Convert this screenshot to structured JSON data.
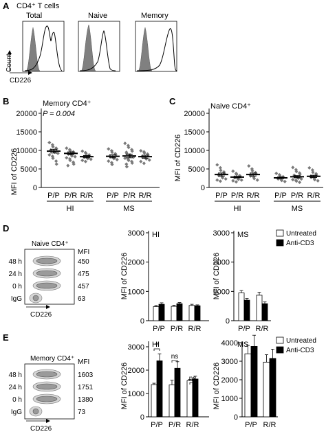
{
  "panelA": {
    "letter": "A",
    "title": "CD4⁺ T cells",
    "subtitles": [
      "Total",
      "Naive",
      "Memory"
    ],
    "ylabel": "Count",
    "xlabel": "CD226"
  },
  "panelB": {
    "letter": "B",
    "title": "Memory CD4⁺",
    "pvalue": "P = 0.004",
    "ylabel": "MFI of CD226",
    "yticks": [
      "0",
      "5000",
      "10000",
      "15000",
      "20000"
    ],
    "groups": [
      {
        "name": "HI",
        "members": [
          "P/P",
          "P/R",
          "R/R"
        ]
      },
      {
        "name": "MS",
        "members": [
          "P/P",
          "P/R",
          "R/R"
        ]
      }
    ]
  },
  "panelC": {
    "letter": "C",
    "title": "Naive CD4⁺",
    "ylabel": "MFI of CD226",
    "yticks": [
      "0",
      "5000",
      "10000",
      "15000",
      "20000"
    ],
    "groups": [
      {
        "name": "HI",
        "members": [
          "P/P",
          "P/R",
          "R/R"
        ]
      },
      {
        "name": "MS",
        "members": [
          "P/P",
          "P/R",
          "R/R"
        ]
      }
    ]
  },
  "panelD": {
    "letter": "D",
    "flow_title": "Naive CD4⁺",
    "mfi_header": "MFI",
    "rows": [
      {
        "label": "48 h",
        "mfi": "450"
      },
      {
        "label": "24 h",
        "mfi": "475"
      },
      {
        "label": "0 h",
        "mfi": "457"
      },
      {
        "label": "IgG",
        "mfi": "63"
      }
    ],
    "xlabel": "CD226",
    "chart_titles": [
      "HI",
      "MS"
    ],
    "ylabel": "MFI of CD226",
    "yticks": [
      "0",
      "1000",
      "2000",
      "3000"
    ]
  },
  "panelE": {
    "letter": "E",
    "flow_title": "Memory CD4⁺",
    "mfi_header": "MFI",
    "rows": [
      {
        "label": "48 h",
        "mfi": "1603"
      },
      {
        "label": "24 h",
        "mfi": "1751"
      },
      {
        "label": "0 h",
        "mfi": "1380"
      },
      {
        "label": "IgG",
        "mfi": "73"
      }
    ],
    "xlabel": "CD226",
    "chart_titles": [
      "HI",
      "MS"
    ],
    "ylabel": "MFI of CD226",
    "yticks_HI": [
      "0",
      "1000",
      "2000",
      "3000"
    ],
    "yticks_MS": [
      "0",
      "1000",
      "2000",
      "3000",
      "4000"
    ],
    "sig_labels": [
      "*",
      "ns",
      "ns"
    ]
  },
  "legend": {
    "untreated": "Untreated",
    "anti_cd3": "Anti-CD3"
  },
  "colors": {
    "untreated": "#ffffff",
    "anti_cd3": "#000000",
    "iso": "#808080",
    "dot": "#7a7a7a"
  },
  "chart_data": [
    {
      "type": "scatter",
      "id": "B",
      "categories": [
        "HI P/P",
        "HI P/R",
        "HI R/R",
        "MS P/P",
        "MS P/R",
        "MS R/R"
      ],
      "ylim": [
        0,
        20000
      ],
      "means": [
        9800,
        9200,
        8300,
        8400,
        8500,
        8300
      ],
      "sem": [
        500,
        400,
        300,
        400,
        500,
        400
      ],
      "points": [
        [
          12100,
          11500,
          11000,
          10600,
          10400,
          10100,
          9900,
          9700,
          9500,
          9200,
          8800,
          8400,
          7900,
          7100,
          6300
        ],
        [
          10600,
          10200,
          9900,
          9600,
          9400,
          9200,
          9000,
          8800,
          8500,
          8300,
          8000,
          7700,
          7300,
          6800,
          6300,
          5900
        ],
        [
          9800,
          9400,
          9100,
          8800,
          8500,
          8300,
          8200,
          8000,
          7800,
          7600,
          7300,
          7000
        ],
        [
          10400,
          9900,
          9500,
          9100,
          8800,
          8500,
          8300,
          8100,
          7800,
          7500,
          7100,
          6700,
          6200
        ],
        [
          11900,
          11300,
          10800,
          10200,
          9800,
          9500,
          9100,
          8800,
          8500,
          8200,
          7900,
          7600,
          7300,
          7000,
          6600,
          6300,
          5600
        ],
        [
          9900,
          9600,
          9300,
          9000,
          8700,
          8400,
          8200,
          8000,
          7700,
          7400,
          7000,
          6500
        ]
      ]
    },
    {
      "type": "scatter",
      "id": "C",
      "categories": [
        "HI P/P",
        "HI P/R",
        "HI R/R",
        "MS P/P",
        "MS P/R",
        "MS R/R"
      ],
      "ylim": [
        0,
        20000
      ],
      "means": [
        3500,
        2800,
        3500,
        2600,
        2900,
        3000
      ],
      "sem": [
        400,
        200,
        400,
        200,
        300,
        300
      ],
      "points": [
        [
          6100,
          5300,
          4600,
          4200,
          3800,
          3500,
          3200,
          2900,
          2600,
          2300,
          2000,
          1700
        ],
        [
          4400,
          3800,
          3500,
          3200,
          3000,
          2800,
          2600,
          2400,
          2200,
          2000,
          1800,
          1500
        ],
        [
          5800,
          5000,
          4500,
          4000,
          3700,
          3400,
          3100,
          2800,
          2400,
          2000
        ],
        [
          3800,
          3400,
          3100,
          2900,
          2700,
          2500,
          2300,
          2100,
          1900,
          1600
        ],
        [
          5400,
          4800,
          4300,
          3900,
          3600,
          3300,
          3000,
          2700,
          2500,
          2300,
          2100,
          1900,
          1700,
          1400
        ],
        [
          5300,
          4700,
          4100,
          3700,
          3300,
          3000,
          2700,
          2400,
          2100,
          1800
        ]
      ]
    },
    {
      "type": "bar",
      "id": "D-HI",
      "categories": [
        "P/P",
        "P/R",
        "R/R"
      ],
      "ylim": [
        0,
        3000
      ],
      "series": [
        {
          "name": "Untreated",
          "values": [
            480,
            490,
            520
          ],
          "err": [
            40,
            40,
            40
          ]
        },
        {
          "name": "Anti-CD3",
          "values": [
            560,
            580,
            510
          ],
          "err": [
            50,
            40,
            30
          ]
        }
      ]
    },
    {
      "type": "bar",
      "id": "D-MS",
      "categories": [
        "P/P",
        "R/R"
      ],
      "ylim": [
        0,
        3000
      ],
      "series": [
        {
          "name": "Untreated",
          "values": [
            950,
            870
          ],
          "err": [
            80,
            100
          ]
        },
        {
          "name": "Anti-CD3",
          "values": [
            700,
            580
          ],
          "err": [
            60,
            60
          ]
        }
      ]
    },
    {
      "type": "bar",
      "id": "E-HI",
      "categories": [
        "P/P",
        "P/R",
        "R/R"
      ],
      "ylim": [
        0,
        3000
      ],
      "series": [
        {
          "name": "Untreated",
          "values": [
            1380,
            1370,
            1550
          ],
          "err": [
            60,
            200,
            50
          ]
        },
        {
          "name": "Anti-CD3",
          "values": [
            2400,
            2080,
            1620
          ],
          "err": [
            300,
            280,
            120
          ]
        }
      ]
    },
    {
      "type": "bar",
      "id": "E-MS",
      "categories": [
        "P/P",
        "R/R"
      ],
      "ylim": [
        0,
        4000
      ],
      "series": [
        {
          "name": "Untreated",
          "values": [
            3400,
            2950
          ],
          "err": [
            450,
            400
          ]
        },
        {
          "name": "Anti-CD3",
          "values": [
            3800,
            3150
          ],
          "err": [
            600,
            500
          ]
        }
      ]
    }
  ]
}
